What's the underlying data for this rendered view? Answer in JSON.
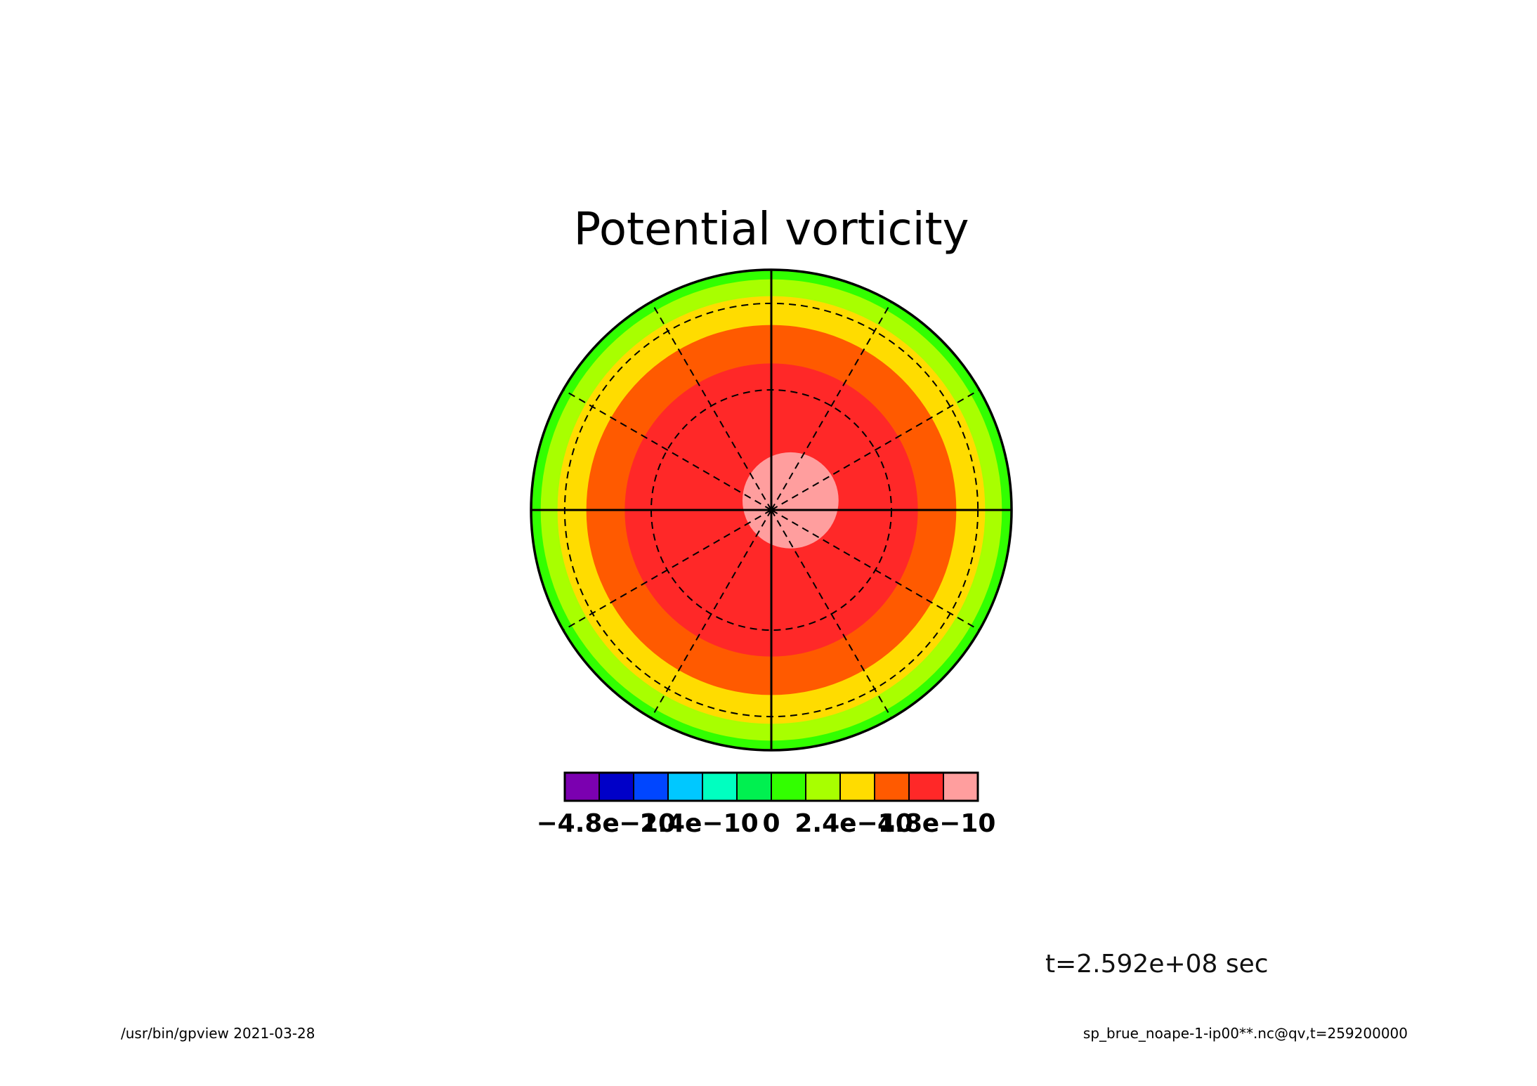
{
  "chart_data": {
    "type": "heatmap",
    "projection": "polar-stereographic",
    "title": "Potential vorticity",
    "colorbar": {
      "colors": [
        "#7b00b0",
        "#0000c8",
        "#0046ff",
        "#00c8ff",
        "#00ffc0",
        "#00f050",
        "#32ff00",
        "#a8ff00",
        "#ffdc00",
        "#ff5a00",
        "#ff2828",
        "#ff9e9e"
      ],
      "bounds": [
        -6e-10,
        -5e-10,
        -4e-10,
        -3e-10,
        -2e-10,
        -1e-10,
        0,
        1e-10,
        2e-10,
        3e-10,
        4e-10,
        5e-10,
        6e-10
      ],
      "tick_values": [
        -4.8e-10,
        -2.4e-10,
        0,
        2.4e-10,
        4.8e-10
      ],
      "tick_labels": [
        "−4.8e−10",
        "−2.4e−10",
        "0",
        "2.4e−10",
        "4.8e−10"
      ]
    },
    "field_rings": [
      {
        "outer_fraction": 1.0,
        "color": "#32ff00",
        "range": "0 to 1e-10"
      },
      {
        "outer_fraction": 0.96,
        "color": "#a8ff00",
        "range": "1e-10 to 2e-10"
      },
      {
        "outer_fraction": 0.89,
        "color": "#ffdc00",
        "range": "2e-10 to 3e-10"
      },
      {
        "outer_fraction": 0.77,
        "color": "#ff5a00",
        "range": "3e-10 to 4e-10"
      },
      {
        "outer_fraction": 0.61,
        "color": "#ff2828",
        "range": "4e-10 to 5e-10"
      },
      {
        "outer_fraction": 0.2,
        "color": "#ff9e9e",
        "range": "5e-10 to 6e-10",
        "offset": [
          0.08,
          -0.04
        ]
      }
    ],
    "meridian_spacing_deg": 30,
    "latitude_circle_fractions": [
      0.5,
      0.86
    ],
    "xlabel": "",
    "ylabel": ""
  },
  "time_label": "t=2.592e+08 sec",
  "footer": {
    "left": "/usr/bin/gpview  2021-03-28",
    "right": "sp_brue_noape-1-ip00**.nc@qv,t=259200000"
  }
}
